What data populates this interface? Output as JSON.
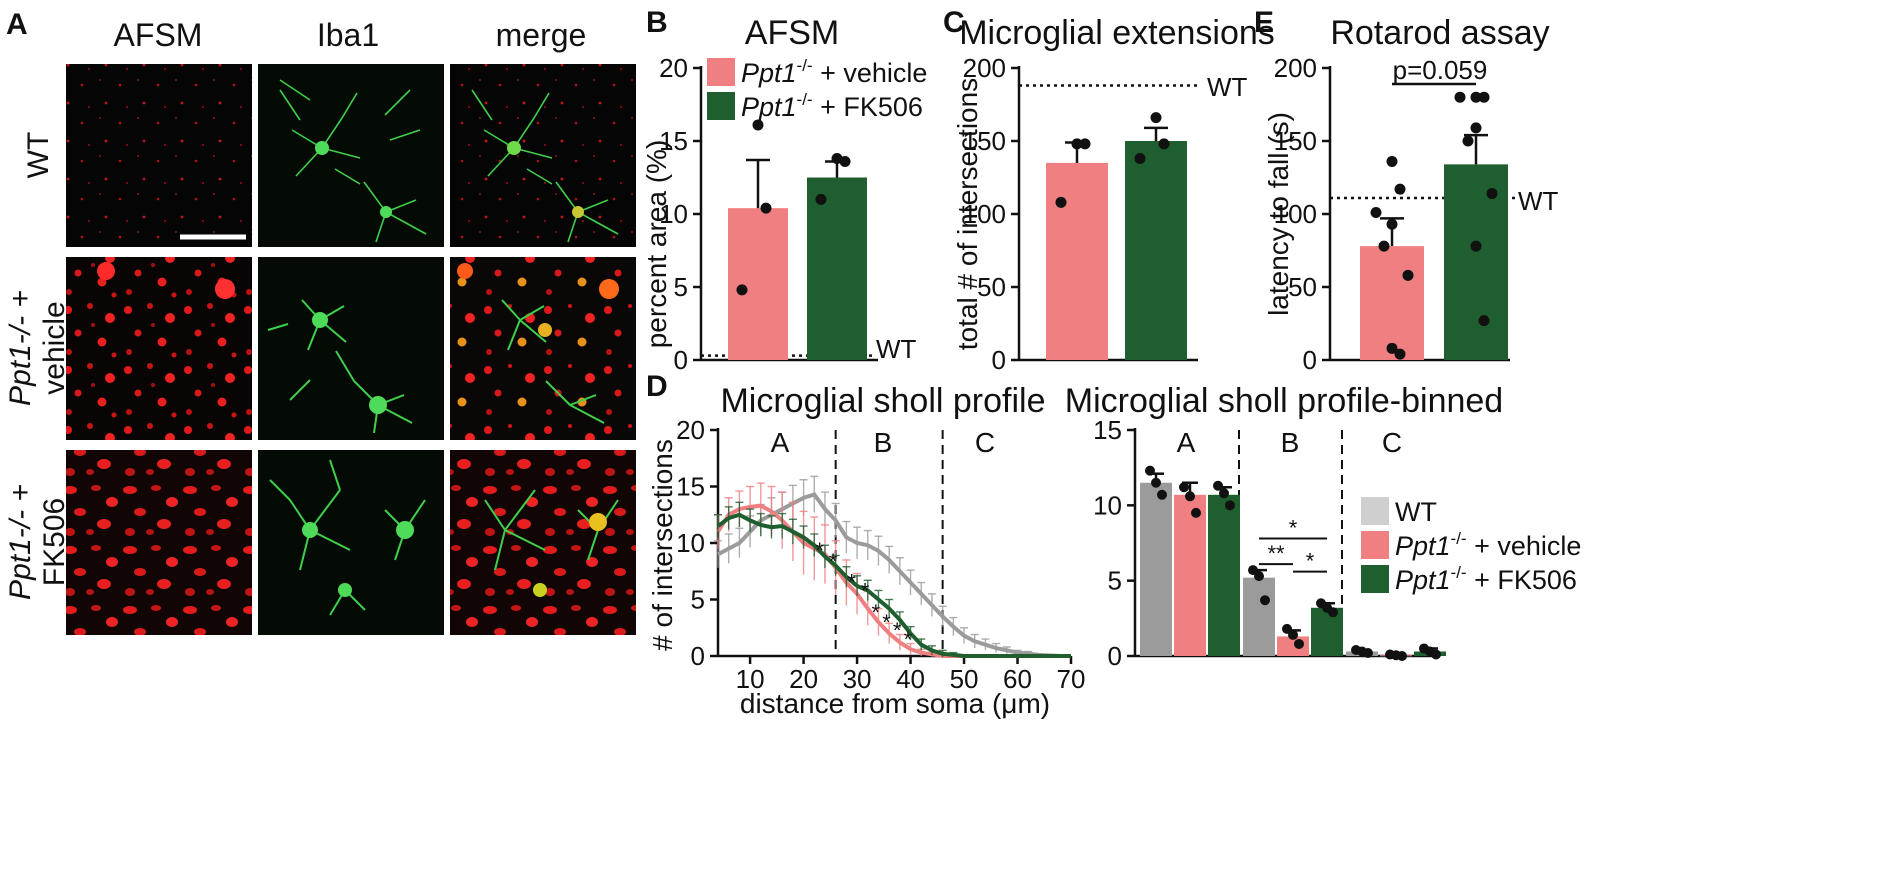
{
  "colors": {
    "wt": "#9b9b9b",
    "vehicle": "#ef7f80",
    "fk506": "#1f5e2e",
    "micro_red": "#ff2222",
    "micro_green": "#33cc44"
  },
  "panel_a": {
    "letter": "A",
    "columns": [
      "AFSM",
      "Iba1",
      "merge"
    ],
    "rows": [
      {
        "lines": [
          "WT"
        ],
        "italic": [
          false
        ]
      },
      {
        "lines": [
          "Ppt1-/- +",
          "vehicle"
        ],
        "italic": [
          true,
          false
        ]
      },
      {
        "lines": [
          "Ppt1-/- +",
          "FK506"
        ],
        "italic": [
          true,
          false
        ]
      }
    ]
  },
  "panel_b": {
    "letter": "B",
    "title": "AFSM",
    "ylabel": "percent area (%)",
    "ref_label": "WT",
    "legend": [
      {
        "geno": "Ppt1",
        "sup": "-/-",
        "rest": " + vehicle"
      },
      {
        "geno": "Ppt1",
        "sup": "-/-",
        "rest": " + FK506"
      }
    ]
  },
  "panel_c": {
    "letter": "C",
    "title": "Microglial extensions",
    "ylabel": "total # of intersections",
    "ref_label": "WT"
  },
  "panel_e": {
    "letter": "E",
    "title": "Rotarod assay",
    "ylabel": "latency to fall (s)",
    "ref_label": "WT",
    "pvalue": "p=0.059"
  },
  "panel_d": {
    "letter": "D",
    "title_left": "Microglial sholl profile",
    "title_right": "Microglial sholl profile-binned",
    "ylabel": "# of intersections",
    "xlabel": "distance from soma (μm)",
    "zones": [
      "A",
      "B",
      "C"
    ],
    "legend": [
      {
        "geno": "WT",
        "sup": "",
        "rest": ""
      },
      {
        "geno": "Ppt1",
        "sup": "-/-",
        "rest": " + vehicle"
      },
      {
        "geno": "Ppt1",
        "sup": "-/-",
        "rest": " + FK506"
      }
    ]
  },
  "chart_data": [
    {
      "type": "bar",
      "panel": "B",
      "title": "AFSM",
      "ylabel": "percent area (%)",
      "ylim": [
        0,
        20
      ],
      "yticks": [
        0,
        5,
        10,
        15,
        20
      ],
      "categories": [
        "Ppt1-/- + vehicle",
        "Ppt1-/- + FK506"
      ],
      "values": [
        10.4,
        12.5
      ],
      "errors": [
        3.3,
        1.1
      ],
      "points": [
        [
          16.1,
          10.4,
          4.8
        ],
        [
          13.8,
          13.6,
          11.0
        ]
      ],
      "reference": {
        "label": "WT",
        "value": 0.3
      }
    },
    {
      "type": "bar",
      "panel": "C",
      "title": "Microglial extensions",
      "ylabel": "total # of intersections",
      "ylim": [
        0,
        200
      ],
      "yticks": [
        0,
        50,
        100,
        150,
        200
      ],
      "categories": [
        "Ppt1-/- + vehicle",
        "Ppt1-/- + FK506"
      ],
      "values": [
        135,
        150
      ],
      "errors": [
        14,
        9
      ],
      "points": [
        [
          148,
          148,
          108
        ],
        [
          166,
          148,
          138
        ]
      ],
      "reference": {
        "label": "WT",
        "value": 188
      }
    },
    {
      "type": "bar",
      "panel": "E",
      "title": "Rotarod assay",
      "ylabel": "latency to fall (s)",
      "ylim": [
        0,
        200
      ],
      "yticks": [
        0,
        50,
        100,
        150,
        200
      ],
      "categories": [
        "Ppt1-/- + vehicle",
        "Ppt1-/- + FK506"
      ],
      "values": [
        78,
        134
      ],
      "errors": [
        19,
        20
      ],
      "points": [
        [
          136,
          117,
          101,
          93,
          78,
          58,
          8,
          4
        ],
        [
          180,
          180,
          180,
          159,
          150,
          114,
          78,
          27
        ]
      ],
      "reference": {
        "label": "WT",
        "value": 111
      },
      "annotation": "p=0.059"
    },
    {
      "type": "line",
      "panel": "D-left",
      "title": "Microglial sholl profile",
      "xlabel": "distance from soma (μm)",
      "ylabel": "# of intersections",
      "xlim": [
        4,
        70
      ],
      "ylim": [
        0,
        20
      ],
      "xticks": [
        10,
        20,
        30,
        40,
        50,
        60,
        70
      ],
      "yticks": [
        0,
        5,
        10,
        15,
        20
      ],
      "zone_dividers": [
        26,
        46
      ],
      "x": [
        4,
        6,
        8,
        10,
        12,
        14,
        16,
        18,
        20,
        22,
        24,
        26,
        28,
        30,
        32,
        34,
        36,
        38,
        40,
        42,
        44,
        46,
        48,
        50,
        52,
        54,
        56,
        58,
        60,
        62,
        64,
        66,
        68,
        70
      ],
      "series": [
        {
          "name": "WT",
          "values": [
            9,
            9.5,
            10,
            11,
            12,
            12.5,
            13,
            13.5,
            14,
            14.3,
            13,
            12,
            10.5,
            10,
            9.8,
            9.3,
            8.5,
            7.5,
            6.5,
            5.5,
            4.5,
            3.5,
            2.6,
            1.8,
            1.3,
            1.0,
            0.7,
            0.5,
            0.3,
            0.2,
            0.1,
            0.05,
            0,
            0
          ],
          "errors": [
            1.2,
            1.3,
            1.3,
            1.4,
            1.4,
            1.5,
            1.5,
            1.6,
            1.6,
            1.6,
            1.5,
            1.5,
            1.4,
            1.4,
            1.3,
            1.3,
            1.2,
            1.2,
            1.1,
            1.0,
            1.0,
            0.9,
            0.8,
            0.7,
            0.6,
            0.5,
            0.4,
            0.3,
            0.2,
            0.2,
            0.1,
            0.1,
            0,
            0
          ]
        },
        {
          "name": "Ppt1-/- + vehicle",
          "values": [
            11,
            12.5,
            13,
            13.2,
            13.3,
            12.8,
            12,
            11,
            10,
            9.5,
            9,
            7.8,
            6.5,
            5.5,
            4.2,
            3,
            2,
            1.2,
            0.6,
            0.3,
            0.15,
            0,
            0,
            0,
            0,
            0,
            0,
            0,
            0,
            0,
            0,
            0,
            0,
            0
          ],
          "errors": [
            1.5,
            1.5,
            1.6,
            1.8,
            2.0,
            2.2,
            2.5,
            2.6,
            2.8,
            2.8,
            2.6,
            2.4,
            2.0,
            1.8,
            1.5,
            1.2,
            0.9,
            0.7,
            0.5,
            0.3,
            0.2,
            0.1,
            0,
            0,
            0,
            0,
            0,
            0,
            0,
            0,
            0,
            0,
            0,
            0
          ]
        },
        {
          "name": "Ppt1-/- + FK506",
          "values": [
            11.5,
            12.2,
            12.5,
            12,
            11.6,
            11.4,
            11.5,
            11,
            10.5,
            9.8,
            8.8,
            8,
            7,
            6.2,
            5.8,
            5,
            4.2,
            3.2,
            2,
            1,
            0.5,
            0.2,
            0.1,
            0,
            0,
            0,
            0,
            0,
            0,
            0,
            0,
            0,
            0,
            0
          ],
          "errors": [
            1.0,
            1.0,
            1.1,
            1.0,
            1.0,
            1.0,
            1.1,
            1.1,
            1.0,
            1.0,
            1.0,
            0.9,
            0.9,
            0.9,
            0.9,
            0.8,
            0.8,
            0.7,
            0.6,
            0.5,
            0.4,
            0.3,
            0.2,
            0.1,
            0,
            0,
            0,
            0,
            0,
            0,
            0,
            0,
            0,
            0
          ]
        }
      ],
      "significance_marks": [
        {
          "x": 23,
          "y": 9.4,
          "label": "*"
        },
        {
          "x": 25.5,
          "y": 8.4,
          "label": "*"
        },
        {
          "x": 29,
          "y": 6.6,
          "label": "*"
        },
        {
          "x": 31.5,
          "y": 5.8,
          "label": "*"
        },
        {
          "x": 33.5,
          "y": 3.9,
          "label": "*"
        },
        {
          "x": 35.5,
          "y": 3.0,
          "label": "*"
        },
        {
          "x": 37.5,
          "y": 2.3,
          "label": "*"
        },
        {
          "x": 39.5,
          "y": 1.5,
          "label": "*"
        }
      ]
    },
    {
      "type": "bar",
      "panel": "D-right",
      "title": "Microglial sholl profile-binned",
      "ylim": [
        0,
        15
      ],
      "yticks": [
        0,
        5,
        10,
        15
      ],
      "categories": [
        "A",
        "B",
        "C"
      ],
      "series": [
        {
          "name": "WT",
          "values": [
            11.5,
            5.2,
            0.3
          ],
          "errors": [
            0.6,
            0.5,
            0.1
          ]
        },
        {
          "name": "Ppt1-/- + vehicle",
          "values": [
            10.7,
            1.3,
            0.05
          ],
          "errors": [
            0.8,
            0.4,
            0.05
          ]
        },
        {
          "name": "Ppt1-/- + FK506",
          "values": [
            10.7,
            3.2,
            0.3
          ],
          "errors": [
            0.5,
            0.3,
            0.2
          ]
        }
      ],
      "points": [
        [
          [
            12.3,
            11.5,
            10.7
          ],
          [
            5.7,
            5.3,
            3.7
          ],
          [
            0.4,
            0.3,
            0.2
          ]
        ],
        [
          [
            11.2,
            10.6,
            9.5
          ],
          [
            1.8,
            1.4,
            0.8
          ],
          [
            0.1,
            0.05,
            0.0
          ]
        ],
        [
          [
            11.3,
            10.8,
            10.0
          ],
          [
            3.5,
            3.2,
            2.9
          ],
          [
            0.5,
            0.3,
            0.1
          ]
        ]
      ],
      "significance": [
        {
          "group": "B",
          "from": "WT",
          "to": "Ppt1-/- + vehicle",
          "label": "**"
        },
        {
          "group": "B",
          "from": "Ppt1-/- + vehicle",
          "to": "Ppt1-/- + FK506",
          "label": "*"
        },
        {
          "group": "B",
          "from": "WT",
          "to": "Ppt1-/- + FK506",
          "label": "*"
        }
      ]
    }
  ]
}
